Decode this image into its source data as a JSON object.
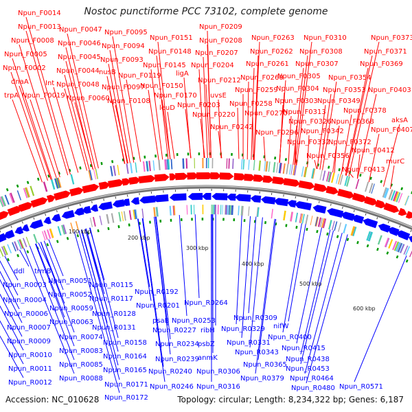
{
  "title": "Nostoc punctiforme PCC 73102, complete genome",
  "accession": "Accession: NC_010628",
  "summary": "Topology: circular; Length: 8,234,322 bp; Genes: 6,187",
  "colors": {
    "forward": "#ff0000",
    "reverse": "#0000ff",
    "backbone": "#8a8a8a",
    "tick": "#009900"
  },
  "scale_labels": [
    "100 kbp",
    "200 kbp",
    "300 kbp",
    "400 kbp",
    "500 kbp",
    "600 kbp"
  ],
  "forward_labels": [
    "Npun_F0014",
    "Npun_F0013",
    "Npun_F0008",
    "Npun_F0005",
    "Npun_F0002",
    "dnaA",
    "trpA",
    "Npun_F0019",
    "Int",
    "Npun_F0047",
    "Npun_F0046",
    "Npun_F0045",
    "Npun_F0044",
    "Npun_F0048",
    "Npun_F0060",
    "Npun_F0095",
    "Npun_F0094",
    "Npun_F0093",
    "nusB",
    "Npun_F0097",
    "Npun_F0119",
    "Npun_F0108",
    "Npun_F0151",
    "Npun_F0148",
    "Npun_F0145",
    "Npun_F0150",
    "ligA",
    "Npun_F0170",
    "leuD",
    "Npun_F0209",
    "Npun_F0208",
    "Npun_F0207",
    "Npun_F0204",
    "Npun_F0212",
    "uvsE",
    "Npun_F0203",
    "Npun_F0220",
    "Npun_F0242",
    "Npun_F0263",
    "Npun_F0262",
    "Npun_F0261",
    "Npun_F0260",
    "Npun_F0259",
    "Npun_F0258",
    "Npun_F0270",
    "Npun_F0310",
    "Npun_F0308",
    "Npun_F0307",
    "Npun_F0305",
    "Npun_F0304",
    "Npun_F0303",
    "Npun_F0313",
    "Npun_F0326",
    "Npun_F0296",
    "Npun_F0342",
    "Npun_F0332",
    "Npun_F0356",
    "Npun_F0373",
    "Npun_F0371",
    "Npun_F0369",
    "Npun_F0354",
    "Npun_F0353",
    "Npun_F0403",
    "Npun_F0349",
    "Npun_F0378",
    "Npun_F0368",
    "Npun_F0372",
    "aksA",
    "Npun_F0407",
    "Npun_F0412",
    "murC",
    "Npun_F0413"
  ],
  "reverse_labels": [
    "ddl",
    "trmB",
    "Npun_R0003",
    "Npun_R0004",
    "Npun_R0006",
    "Npun_R0007",
    "Npun_R0009",
    "Npun_R0010",
    "Npun_R0011",
    "Npun_R0012",
    "Npun_R0051",
    "Npun_R0052",
    "Npun_R0059",
    "Npun_R0063",
    "Npun_R0074",
    "Npun_R0083",
    "Npun_R0085",
    "Npun_R0088",
    "Npun_R0115",
    "Npun_R0117",
    "Npun_R0128",
    "Npun_R0131",
    "Npun_R0158",
    "Npun_R0164",
    "Npun_R0165",
    "Npun_R0171",
    "Npun_R0172",
    "Npun_R0192",
    "Npun_R0201",
    "psaB",
    "Npun_R0227",
    "Npun_R0234",
    "Npun_R0239",
    "Npun_R0240",
    "Npun_R0246",
    "Npun_R0264",
    "Npun_R0253",
    "ribH",
    "psbZ",
    "anmK",
    "Npun_R0306",
    "Npun_R0316",
    "Npun_R0309",
    "Npun_R0329",
    "Npun_R0331",
    "Npun_R0343",
    "Npun_R0365",
    "Npun_R0379",
    "nifW",
    "Npun_R0400",
    "Npun_R0415",
    "Npun_R0438",
    "Npun_R0453",
    "Npun_R0464",
    "Npun_R0480",
    "Npun_R0571"
  ]
}
